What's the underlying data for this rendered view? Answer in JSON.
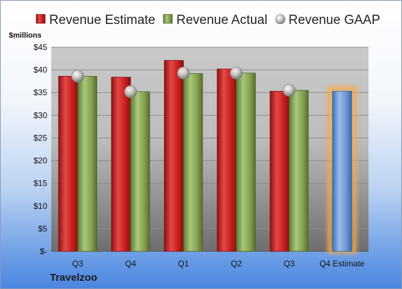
{
  "chart_data": {
    "type": "bar",
    "unit_label": "$millions",
    "categories": [
      "Q3",
      "Q4",
      "Q1",
      "Q2",
      "Q3",
      "Q4 Estimate"
    ],
    "series": [
      {
        "name": "Revenue Estimate",
        "type": "bar",
        "color": "#d42a2a",
        "values": [
          38.6,
          38.4,
          42.1,
          40.2,
          35.3,
          null
        ]
      },
      {
        "name": "Revenue Actual",
        "type": "bar",
        "color": "#8fad5a",
        "values": [
          38.6,
          35.2,
          39.2,
          39.3,
          35.5,
          null
        ]
      },
      {
        "name": "Revenue GAAP",
        "type": "scatter",
        "color": "#c8c8c8",
        "values": [
          38.6,
          35.2,
          39.3,
          39.3,
          35.5,
          null
        ]
      },
      {
        "name": "Q4 Estimate",
        "type": "bar",
        "color": "#6d9ad6",
        "values": [
          null,
          null,
          null,
          null,
          null,
          35.3
        ]
      }
    ],
    "y_ticks": [
      "$-",
      "$5",
      "$10",
      "$15",
      "$20",
      "$25",
      "$30",
      "$35",
      "$40",
      "$45"
    ],
    "ylim": [
      0,
      45
    ],
    "grid": true,
    "legend_position": "top"
  },
  "footer": {
    "company": "Travelzoo"
  }
}
